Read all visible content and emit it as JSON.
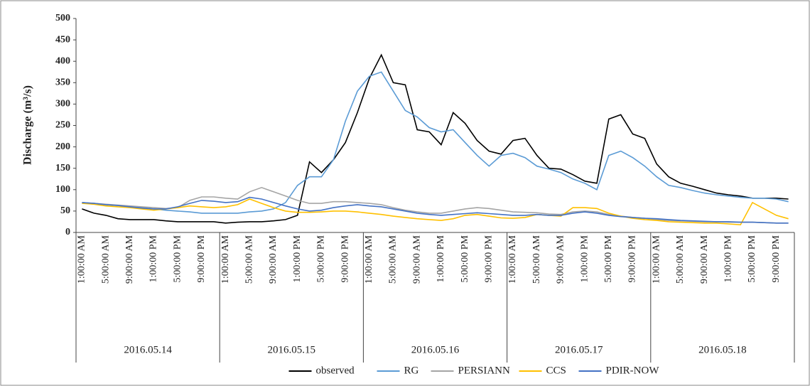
{
  "chart_data": {
    "type": "line",
    "y_label": "Discharge (m³/s)",
    "categories": [
      "1:00:00 AM",
      null,
      "5:00:00 AM",
      null,
      "9:00:00 AM",
      null,
      "1:00:00 PM",
      null,
      "5:00:00 PM",
      null,
      "9:00:00 PM",
      null,
      "1:00:00 AM",
      null,
      "5:00:00 AM",
      null,
      "9:00:00 AM",
      null,
      "1:00:00 PM",
      null,
      "5:00:00 PM",
      null,
      "9:00:00 PM",
      null,
      "1:00:00 AM",
      null,
      "5:00:00 AM",
      null,
      "9:00:00 AM",
      null,
      "1:00:00 PM",
      null,
      "5:00:00 PM",
      null,
      "9:00:00 PM",
      null,
      "1:00:00 AM",
      null,
      "5:00:00 AM",
      null,
      "9:00:00 AM",
      null,
      "1:00:00 PM",
      null,
      "5:00:00 PM",
      null,
      "9:00:00 PM",
      null,
      "1:00:00 AM",
      null,
      "5:00:00 AM",
      null,
      "9:00:00 AM",
      null,
      "1:00:00 PM",
      null,
      "5:00:00 PM",
      null,
      "9:00:00 PM",
      null
    ],
    "x_groups": [
      "2016.05.14",
      "2016.05.15",
      "2016.05.16",
      "2016.05.17",
      "2016.05.18"
    ],
    "ylim": [
      0,
      500
    ],
    "yticks": [
      0,
      50,
      100,
      150,
      200,
      250,
      300,
      350,
      400,
      450,
      500
    ],
    "grid": false,
    "legend": "bottom",
    "series": [
      {
        "name": "observed",
        "color": "#000000",
        "values": [
          55,
          45,
          40,
          32,
          30,
          30,
          30,
          27,
          25,
          25,
          25,
          25,
          22,
          24,
          25,
          25,
          27,
          30,
          40,
          165,
          140,
          170,
          210,
          280,
          360,
          415,
          350,
          345,
          240,
          235,
          205,
          280,
          255,
          215,
          190,
          183,
          215,
          220,
          180,
          150,
          148,
          135,
          120,
          115,
          265,
          275,
          230,
          220,
          160,
          130,
          115,
          108,
          100,
          92,
          88,
          85,
          80,
          80,
          80,
          78
        ]
      },
      {
        "name": "RG",
        "color": "#5b9bd5",
        "values": [
          70,
          68,
          65,
          63,
          60,
          58,
          55,
          52,
          50,
          48,
          45,
          45,
          45,
          45,
          48,
          50,
          55,
          70,
          110,
          130,
          130,
          170,
          260,
          330,
          365,
          375,
          330,
          285,
          270,
          245,
          235,
          240,
          210,
          180,
          155,
          180,
          185,
          175,
          155,
          148,
          140,
          125,
          115,
          100,
          180,
          190,
          175,
          155,
          130,
          110,
          105,
          98,
          92,
          88,
          85,
          82,
          80,
          80,
          78,
          72
        ]
      },
      {
        "name": "PERSIANN",
        "color": "#a5a5a5",
        "values": [
          68,
          68,
          66,
          64,
          62,
          60,
          58,
          56,
          58,
          75,
          83,
          83,
          80,
          78,
          95,
          105,
          95,
          85,
          75,
          68,
          68,
          72,
          72,
          70,
          68,
          65,
          58,
          52,
          48,
          45,
          45,
          50,
          55,
          58,
          56,
          52,
          48,
          47,
          46,
          43,
          42,
          48,
          50,
          48,
          42,
          38,
          35,
          33,
          30,
          28,
          27,
          26,
          25,
          25,
          24,
          24,
          24,
          23,
          22,
          22
        ]
      },
      {
        "name": "CCS",
        "color": "#ffc000",
        "values": [
          68,
          66,
          62,
          60,
          58,
          55,
          52,
          55,
          58,
          62,
          60,
          58,
          60,
          65,
          78,
          68,
          58,
          50,
          47,
          47,
          48,
          50,
          50,
          48,
          45,
          42,
          38,
          35,
          32,
          30,
          28,
          32,
          40,
          42,
          38,
          34,
          33,
          35,
          42,
          40,
          38,
          58,
          58,
          56,
          45,
          38,
          33,
          30,
          28,
          25,
          24,
          23,
          22,
          22,
          20,
          18,
          70,
          55,
          40,
          32
        ]
      },
      {
        "name": "PDIR-NOW",
        "color": "#4472c4",
        "values": [
          70,
          68,
          65,
          63,
          60,
          57,
          55,
          55,
          60,
          68,
          75,
          73,
          70,
          72,
          82,
          78,
          70,
          62,
          55,
          50,
          52,
          58,
          62,
          65,
          62,
          60,
          55,
          50,
          45,
          42,
          40,
          42,
          44,
          46,
          44,
          42,
          40,
          40,
          42,
          40,
          40,
          45,
          48,
          45,
          40,
          37,
          35,
          33,
          32,
          30,
          28,
          27,
          26,
          25,
          25,
          24,
          24,
          23,
          22,
          22
        ]
      }
    ]
  }
}
